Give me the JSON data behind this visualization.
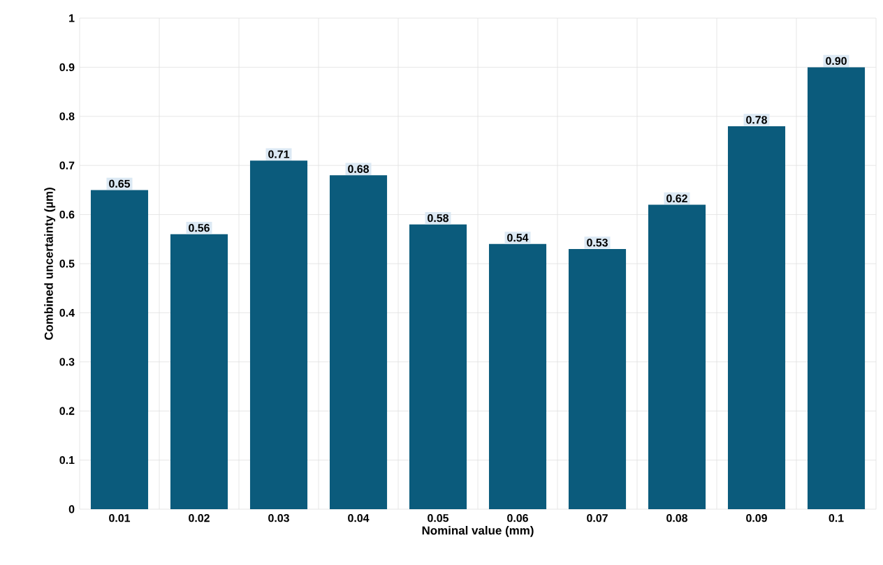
{
  "chart_data": {
    "type": "bar",
    "xlabel": "Nominal value (mm)",
    "ylabel": "Combined uncertainty (µm)",
    "categories": [
      "0.01",
      "0.02",
      "0.03",
      "0.04",
      "0.05",
      "0.06",
      "0.07",
      "0.08",
      "0.09",
      "0.1"
    ],
    "values": [
      0.65,
      0.56,
      0.71,
      0.68,
      0.58,
      0.54,
      0.53,
      0.62,
      0.78,
      0.9
    ],
    "value_labels": [
      "0.65",
      "0.56",
      "0.71",
      "0.68",
      "0.58",
      "0.54",
      "0.53",
      "0.62",
      "0.78",
      "0.90"
    ],
    "color": "#0b5b7c",
    "ylim": [
      0,
      1
    ],
    "yticks": [
      0,
      0.1,
      0.2,
      0.3,
      0.4,
      0.5,
      0.6,
      0.7,
      0.8,
      0.9,
      1
    ],
    "grid": true
  }
}
